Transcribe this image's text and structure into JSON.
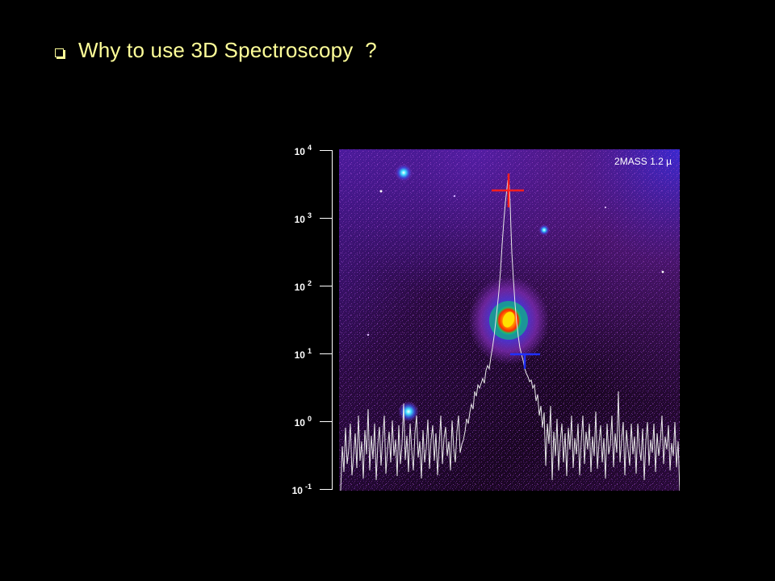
{
  "slide": {
    "bullet_icon": "square-bullet-icon",
    "title": "Why to use 3D Spectroscopy  ?"
  },
  "axis": {
    "ticks": [
      {
        "base": "10",
        "exponent": "4"
      },
      {
        "base": "10",
        "exponent": "3"
      },
      {
        "base": "10",
        "exponent": "2"
      },
      {
        "base": "10",
        "exponent": "1"
      },
      {
        "base": "10",
        "exponent": "0"
      },
      {
        "base": "10",
        "exponent": "-1"
      }
    ],
    "scale": "log"
  },
  "image": {
    "caption": "2MASS 1.2 µ",
    "colors": {
      "sky_dark": "#1a0622",
      "sky_purple": "#6a1fa0",
      "sky_blue": "#3a2ad8",
      "profile_line": "#e8e8e8",
      "red_marker": "#ff1e1e",
      "blue_marker": "#2030ff"
    }
  }
}
